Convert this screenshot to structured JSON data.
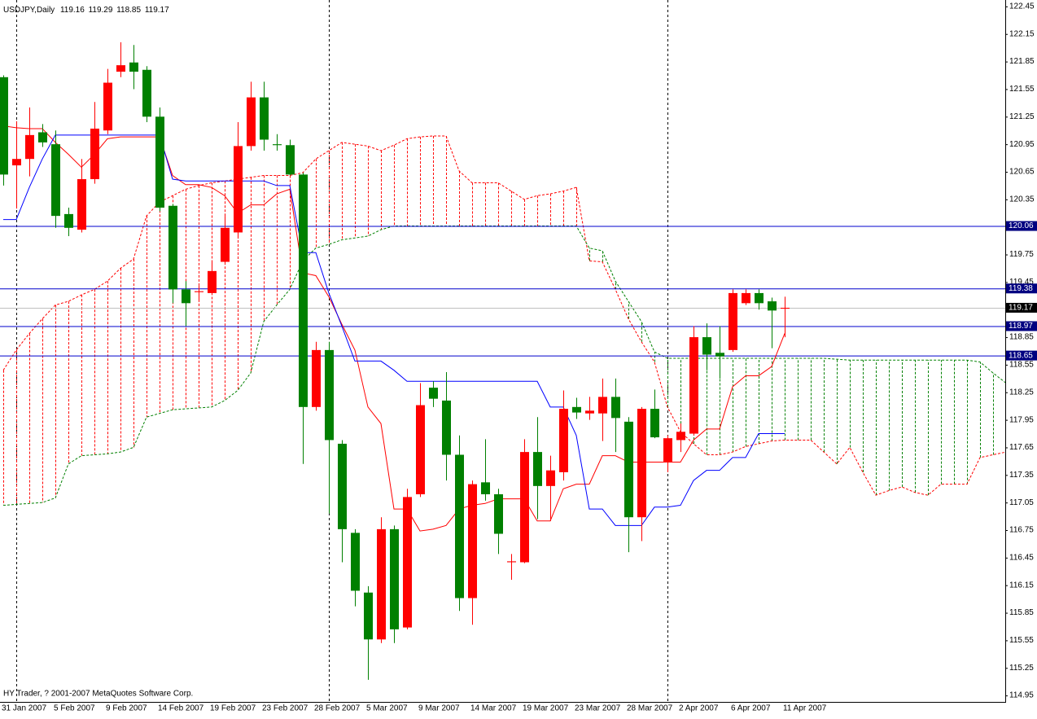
{
  "chart_data": {
    "type": "candlestick",
    "title": "USDJPY,Daily",
    "footer": "HY Trader, ? 2001-2007 MetaQuotes Software Corp.",
    "categories": [
      "31 Jan 2007",
      null,
      null,
      null,
      "5 Feb 2007",
      null,
      null,
      null,
      "9 Feb 2007",
      null,
      null,
      null,
      "14 Feb 2007",
      null,
      null,
      null,
      "19 Feb 2007",
      null,
      null,
      null,
      "23 Feb 2007",
      null,
      null,
      null,
      "28 Feb 2007",
      null,
      null,
      null,
      "5 Mar 2007",
      null,
      null,
      null,
      "9 Mar 2007",
      null,
      null,
      null,
      "14 Mar 2007",
      null,
      null,
      null,
      "19 Mar 2007",
      null,
      null,
      null,
      "23 Mar 2007",
      null,
      null,
      null,
      "28 Mar 2007",
      null,
      null,
      null,
      "2 Apr 2007",
      null,
      null,
      null,
      "6 Apr 2007",
      null,
      null,
      null,
      "11 Apr 2007"
    ],
    "open": [
      121.68,
      120.72,
      120.79,
      121.08,
      120.95,
      120.19,
      120.02,
      120.57,
      121.1,
      121.74,
      121.84,
      121.76,
      121.25,
      120.28,
      119.37,
      119.34,
      119.33,
      119.67,
      119.99,
      120.93,
      121.46,
      120.95,
      120.94,
      120.62,
      118.09,
      118.71,
      117.69,
      116.72,
      116.07,
      115.56,
      116.76,
      115.69,
      117.14,
      118.3,
      118.16,
      117.57,
      116.01,
      117.27,
      117.14,
      116.4,
      116.4,
      117.6,
      117.23,
      117.38,
      118.09,
      118.02,
      118.02,
      118.2,
      117.93,
      116.89,
      118.07,
      117.49,
      117.73,
      117.8,
      118.85,
      118.68,
      118.71,
      119.22,
      119.33,
      119.24,
      119.16
    ],
    "high": [
      121.7,
      121.2,
      121.35,
      121.17,
      121.1,
      120.26,
      120.79,
      121.41,
      121.77,
      122.06,
      122.03,
      121.8,
      121.35,
      120.3,
      119.46,
      119.41,
      119.68,
      120.17,
      121.19,
      121.63,
      121.63,
      121.06,
      121.0,
      120.64,
      118.8,
      118.8,
      117.73,
      116.76,
      116.14,
      116.89,
      116.8,
      117.2,
      118.35,
      118.37,
      118.47,
      117.78,
      117.29,
      117.74,
      117.2,
      116.49,
      117.74,
      117.98,
      117.56,
      118.27,
      118.19,
      118.2,
      118.4,
      118.4,
      117.98,
      118.09,
      118.28,
      117.78,
      117.91,
      118.97,
      119.0,
      118.97,
      119.37,
      119.37,
      119.37,
      119.28,
      119.29
    ],
    "low": [
      120.5,
      120.25,
      120.6,
      120.92,
      120.04,
      119.95,
      119.99,
      120.52,
      121.06,
      121.68,
      121.55,
      121.19,
      120.22,
      119.22,
      118.97,
      119.25,
      119.31,
      119.64,
      119.95,
      120.88,
      120.88,
      120.88,
      120.61,
      117.47,
      118.05,
      116.93,
      116.4,
      115.92,
      115.12,
      115.52,
      115.52,
      115.67,
      117.11,
      118.09,
      117.29,
      115.87,
      115.72,
      117.07,
      116.49,
      116.21,
      116.39,
      116.87,
      116.85,
      117.29,
      117.96,
      117.95,
      117.72,
      117.6,
      116.51,
      116.63,
      117.75,
      117.38,
      117.6,
      117.78,
      118.49,
      118.4,
      118.69,
      119.2,
      119.15,
      118.73,
      118.85
    ],
    "close": [
      120.62,
      120.79,
      121.05,
      120.97,
      120.17,
      120.04,
      120.57,
      121.12,
      121.62,
      121.81,
      121.74,
      121.25,
      120.26,
      119.37,
      119.22,
      119.35,
      119.57,
      120.04,
      120.93,
      121.46,
      121.0,
      120.94,
      120.62,
      118.09,
      118.71,
      117.73,
      116.76,
      116.09,
      115.56,
      116.76,
      115.67,
      117.11,
      118.11,
      118.18,
      117.57,
      116.01,
      117.25,
      117.14,
      116.71,
      116.41,
      117.6,
      117.23,
      117.4,
      118.07,
      118.03,
      118.05,
      118.2,
      117.97,
      116.89,
      118.07,
      117.76,
      117.75,
      117.82,
      118.85,
      118.66,
      118.64,
      119.33,
      119.33,
      119.22,
      119.14,
      119.17
    ],
    "up_color": "#ff0000",
    "down_color": "#008000",
    "lines": [
      {
        "color": "#ff0000",
        "values": [
          121.15,
          121.13,
          121.12,
          121.12,
          120.97,
          120.84,
          120.7,
          120.84,
          121.01,
          121.03,
          121.03,
          121.03,
          121.03,
          120.61,
          120.51,
          120.51,
          120.48,
          120.39,
          120.2,
          120.29,
          120.29,
          120.41,
          120.46,
          119.55,
          119.52,
          119.29,
          118.99,
          118.71,
          118.09,
          117.91,
          116.98,
          116.98,
          116.74,
          116.76,
          116.8,
          116.98,
          117.02,
          117.04,
          117.09,
          117.09,
          117.09,
          116.85,
          116.85,
          117.2,
          117.25,
          117.25,
          117.56,
          117.56,
          117.49,
          117.49,
          117.49,
          117.49,
          117.49,
          117.73,
          117.85,
          117.85,
          118.31,
          118.43,
          118.43,
          118.53,
          118.89
        ]
      },
      {
        "color": "#0000ff",
        "values": [
          120.13,
          120.13,
          120.48,
          120.79,
          121.05,
          121.05,
          121.05,
          121.05,
          121.05,
          121.05,
          121.05,
          121.05,
          121.05,
          120.57,
          120.55,
          120.55,
          120.55,
          120.55,
          120.55,
          120.55,
          120.55,
          120.5,
          120.5,
          119.77,
          119.77,
          119.33,
          118.97,
          118.59,
          118.59,
          118.59,
          118.49,
          118.37,
          118.37,
          118.37,
          118.37,
          118.37,
          118.37,
          118.37,
          118.37,
          118.37,
          118.37,
          118.37,
          118.09,
          118.09,
          117.78,
          116.98,
          116.98,
          116.8,
          116.8,
          116.8,
          117.0,
          117.0,
          117.02,
          117.29,
          117.4,
          117.4,
          117.54,
          117.54,
          117.8,
          117.8,
          117.8
        ]
      }
    ],
    "cloud": {
      "span_a": {
        "color": "#ff0000",
        "values": [
          118.49,
          118.71,
          118.89,
          119.05,
          119.2,
          119.24,
          119.31,
          119.37,
          119.46,
          119.6,
          119.7,
          120.17,
          120.32,
          120.39,
          120.46,
          120.5,
          120.53,
          120.55,
          120.57,
          120.59,
          120.61,
          120.61,
          120.61,
          120.64,
          120.79,
          120.88,
          120.97,
          120.95,
          120.93,
          120.88,
          120.94,
          121.01,
          121.03,
          121.04,
          121.04,
          120.66,
          120.53,
          120.53,
          120.53,
          120.44,
          120.35,
          120.39,
          120.41,
          120.44,
          120.48,
          119.68,
          119.67,
          119.37,
          119.05,
          118.8,
          118.58,
          118.09,
          117.82,
          117.69,
          117.57,
          117.57,
          117.6,
          117.66,
          117.69,
          117.72,
          117.73,
          117.73,
          117.73,
          117.6,
          117.47,
          117.65,
          117.38,
          117.13,
          117.18,
          117.22,
          117.16,
          117.13,
          117.25,
          117.25,
          117.25,
          117.54,
          117.57,
          117.6
        ]
      },
      "span_b": {
        "color": "#008000",
        "values": [
          117.02,
          117.03,
          117.04,
          117.05,
          117.1,
          117.47,
          117.56,
          117.57,
          117.58,
          117.6,
          117.65,
          117.98,
          118.02,
          118.06,
          118.07,
          118.08,
          118.09,
          118.16,
          118.27,
          118.46,
          119.02,
          119.2,
          119.37,
          119.68,
          119.82,
          119.86,
          119.91,
          119.93,
          119.95,
          120.02,
          120.06,
          120.06,
          120.06,
          120.06,
          120.06,
          120.06,
          120.06,
          120.06,
          120.06,
          120.06,
          120.06,
          120.06,
          120.06,
          120.06,
          120.06,
          119.82,
          119.79,
          119.46,
          119.24,
          119.02,
          118.69,
          118.62,
          118.62,
          118.62,
          118.62,
          118.62,
          118.62,
          118.62,
          118.62,
          118.62,
          118.62,
          118.62,
          118.62,
          118.62,
          118.61,
          118.6,
          118.6,
          118.6,
          118.6,
          118.6,
          118.6,
          118.6,
          118.6,
          118.6,
          118.6,
          118.58,
          118.46,
          118.35
        ]
      }
    },
    "levels": [
      {
        "value": 120.06,
        "color": "#0000cc"
      },
      {
        "value": 119.38,
        "color": "#0000cc"
      },
      {
        "value": 118.97,
        "color": "#0000cc"
      },
      {
        "value": 118.65,
        "color": "#0000cc"
      }
    ],
    "price_line_color": "#c0c0c0",
    "ylim": [
      114.88,
      122.52
    ],
    "yticks": [
      122.45,
      122.15,
      121.85,
      121.55,
      121.25,
      120.95,
      120.65,
      120.35,
      120.05,
      119.75,
      119.45,
      119.15,
      118.85,
      118.55,
      118.25,
      117.95,
      117.65,
      117.35,
      117.05,
      116.75,
      116.45,
      116.15,
      115.85,
      115.55,
      115.25,
      114.95
    ],
    "grid": false
  }
}
